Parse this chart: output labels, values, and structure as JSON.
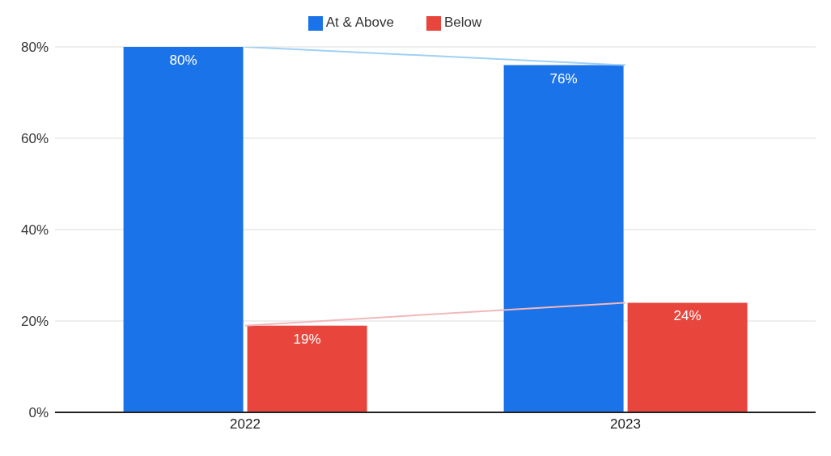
{
  "chart_data": {
    "type": "bar",
    "categories": [
      "2022",
      "2023"
    ],
    "series": [
      {
        "name": "At & Above",
        "color": "#1a73e8",
        "values": [
          80,
          76
        ],
        "value_labels": [
          "80%",
          "76%"
        ]
      },
      {
        "name": "Below",
        "color": "#e8453c",
        "values": [
          19,
          24
        ],
        "value_labels": [
          "19%",
          "24%"
        ]
      },
      {
        "type": "line",
        "color": "#9fd0f5",
        "values": [
          80,
          76
        ]
      },
      {
        "type": "line",
        "color": "#f2b8bc",
        "values": [
          19,
          24
        ]
      }
    ],
    "ylim": [
      0,
      80
    ],
    "yticks": [
      {
        "value": 0,
        "label": "0%"
      },
      {
        "value": 20,
        "label": "20%"
      },
      {
        "value": 40,
        "label": "40%"
      },
      {
        "value": 60,
        "label": "60%"
      },
      {
        "value": 80,
        "label": "80%"
      }
    ],
    "grid": "y",
    "legend": "top",
    "marker": "none"
  }
}
